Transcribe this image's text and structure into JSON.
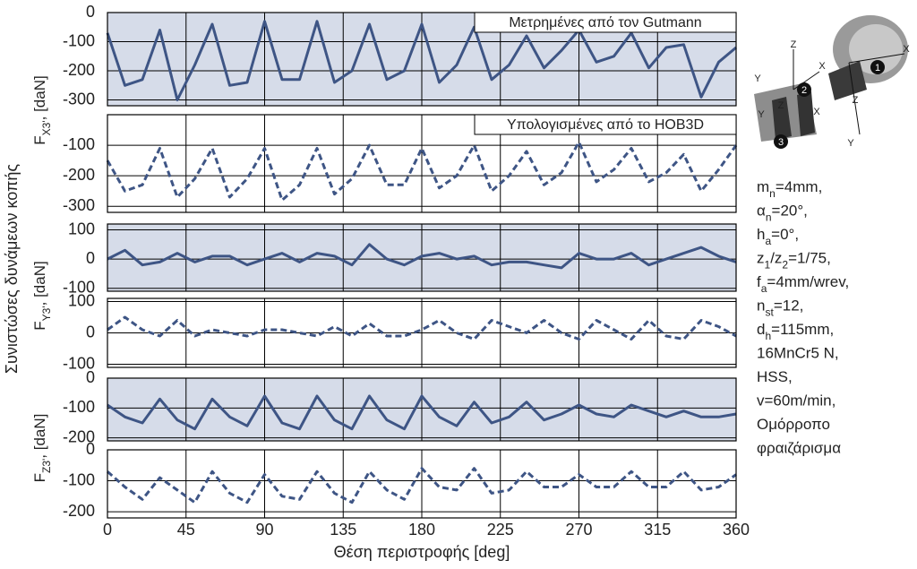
{
  "chart_data": [
    {
      "type": "line",
      "annotation": "Μετρημένες από τον Gutmann",
      "ylabel": {
        "main": "F",
        "sub": "X3'",
        "unit": ", [daN]"
      },
      "color": "#3e5585",
      "dashed": false,
      "background": "#d6dce9",
      "x": [
        0,
        10,
        20,
        30,
        40,
        50,
        60,
        70,
        80,
        90,
        100,
        110,
        120,
        130,
        140,
        150,
        160,
        170,
        180,
        190,
        200,
        210,
        220,
        230,
        240,
        250,
        260,
        270,
        280,
        290,
        300,
        310,
        320,
        330,
        340,
        350,
        360
      ],
      "values": [
        -70,
        -250,
        -230,
        -60,
        -300,
        -180,
        -40,
        -250,
        -240,
        -30,
        -230,
        -230,
        -30,
        -240,
        -200,
        -40,
        -230,
        -200,
        -40,
        -240,
        -180,
        -50,
        -230,
        -180,
        -80,
        -190,
        -130,
        -60,
        -170,
        -150,
        -70,
        -190,
        -120,
        -110,
        -290,
        -170,
        -120
      ],
      "xlim": [
        0,
        360
      ],
      "xticks": [
        0,
        45,
        90,
        135,
        180,
        225,
        270,
        315,
        360
      ],
      "ylim": [
        -320,
        0
      ],
      "yticks": [
        0,
        -100,
        -200,
        -300
      ]
    },
    {
      "type": "line",
      "annotation": "Υπολογισμένες από το HOB3D",
      "color": "#3e5585",
      "dashed": true,
      "x": [
        0,
        10,
        20,
        30,
        40,
        50,
        60,
        70,
        80,
        90,
        100,
        110,
        120,
        130,
        140,
        150,
        160,
        170,
        180,
        190,
        200,
        210,
        220,
        230,
        240,
        250,
        260,
        270,
        280,
        290,
        300,
        310,
        320,
        330,
        340,
        350,
        360
      ],
      "values": [
        -150,
        -250,
        -230,
        -110,
        -270,
        -210,
        -110,
        -270,
        -210,
        -110,
        -280,
        -230,
        -110,
        -260,
        -210,
        -100,
        -230,
        -230,
        -110,
        -240,
        -200,
        -100,
        -250,
        -200,
        -120,
        -230,
        -190,
        -90,
        -220,
        -180,
        -110,
        -220,
        -190,
        -130,
        -250,
        -180,
        -100
      ],
      "xlim": [
        0,
        360
      ],
      "xticks": [
        0,
        45,
        90,
        135,
        180,
        225,
        270,
        315,
        360
      ],
      "ylim": [
        -320,
        0
      ],
      "yticks": [
        -100,
        -200,
        -300
      ]
    },
    {
      "type": "line",
      "ylabel": {
        "main": "F",
        "sub": "Y3'",
        "unit": ", [daN]"
      },
      "color": "#3e5585",
      "dashed": false,
      "background": "#d6dce9",
      "x": [
        0,
        10,
        20,
        30,
        40,
        50,
        60,
        70,
        80,
        90,
        100,
        110,
        120,
        130,
        140,
        150,
        160,
        170,
        180,
        190,
        200,
        210,
        220,
        230,
        240,
        250,
        260,
        270,
        280,
        290,
        300,
        310,
        320,
        330,
        340,
        350,
        360
      ],
      "values": [
        0,
        30,
        -20,
        -10,
        20,
        -10,
        10,
        10,
        -20,
        0,
        20,
        -10,
        20,
        10,
        -20,
        50,
        0,
        -20,
        10,
        20,
        0,
        10,
        -20,
        -10,
        -10,
        -20,
        -30,
        20,
        0,
        0,
        20,
        -20,
        0,
        20,
        40,
        10,
        -10
      ],
      "xlim": [
        0,
        360
      ],
      "xticks": [
        0,
        45,
        90,
        135,
        180,
        225,
        270,
        315,
        360
      ],
      "ylim": [
        -110,
        120
      ],
      "yticks": [
        100,
        0,
        -100
      ]
    },
    {
      "type": "line",
      "color": "#3e5585",
      "dashed": true,
      "x": [
        0,
        10,
        20,
        30,
        40,
        50,
        60,
        70,
        80,
        90,
        100,
        110,
        120,
        130,
        140,
        150,
        160,
        170,
        180,
        190,
        200,
        210,
        220,
        230,
        240,
        250,
        260,
        270,
        280,
        290,
        300,
        310,
        320,
        330,
        340,
        350,
        360
      ],
      "values": [
        10,
        50,
        10,
        -10,
        40,
        -10,
        10,
        0,
        -10,
        10,
        10,
        0,
        -10,
        20,
        -10,
        30,
        -10,
        -10,
        10,
        40,
        0,
        -20,
        40,
        20,
        0,
        40,
        0,
        -20,
        40,
        10,
        -20,
        40,
        -10,
        -20,
        40,
        20,
        -10
      ],
      "xlim": [
        0,
        360
      ],
      "xticks": [
        0,
        45,
        90,
        135,
        180,
        225,
        270,
        315,
        360
      ],
      "ylim": [
        -110,
        110
      ],
      "yticks": [
        100,
        0,
        -100
      ]
    },
    {
      "type": "line",
      "ylabel": {
        "main": "F",
        "sub": "Z3'",
        "unit": ", [daN]"
      },
      "color": "#3e5585",
      "dashed": false,
      "background": "#d6dce9",
      "x": [
        0,
        10,
        20,
        30,
        40,
        50,
        60,
        70,
        80,
        90,
        100,
        110,
        120,
        130,
        140,
        150,
        160,
        170,
        180,
        190,
        200,
        210,
        220,
        230,
        240,
        250,
        260,
        270,
        280,
        290,
        300,
        310,
        320,
        330,
        340,
        350,
        360
      ],
      "values": [
        -90,
        -130,
        -150,
        -70,
        -140,
        -170,
        -70,
        -130,
        -160,
        -60,
        -150,
        -170,
        -60,
        -140,
        -170,
        -60,
        -140,
        -170,
        -60,
        -130,
        -160,
        -80,
        -150,
        -130,
        -80,
        -140,
        -120,
        -90,
        -120,
        -130,
        -90,
        -110,
        -130,
        -110,
        -130,
        -130,
        -120
      ],
      "xlim": [
        0,
        360
      ],
      "xticks": [
        0,
        45,
        90,
        135,
        180,
        225,
        270,
        315,
        360
      ],
      "ylim": [
        -210,
        0
      ],
      "yticks": [
        0,
        -100,
        -200
      ]
    },
    {
      "type": "line",
      "color": "#3e5585",
      "dashed": true,
      "xlabel": "Θέση περιστροφής [deg]",
      "x": [
        0,
        10,
        20,
        30,
        40,
        50,
        60,
        70,
        80,
        90,
        100,
        110,
        120,
        130,
        140,
        150,
        160,
        170,
        180,
        190,
        200,
        210,
        220,
        230,
        240,
        250,
        260,
        270,
        280,
        290,
        300,
        310,
        320,
        330,
        340,
        350,
        360
      ],
      "values": [
        -70,
        -120,
        -160,
        -90,
        -130,
        -170,
        -70,
        -140,
        -170,
        -80,
        -150,
        -160,
        -70,
        -140,
        -170,
        -70,
        -130,
        -160,
        -60,
        -120,
        -130,
        -60,
        -140,
        -130,
        -70,
        -120,
        -120,
        -80,
        -120,
        -120,
        -70,
        -120,
        -120,
        -70,
        -130,
        -120,
        -80
      ],
      "xlim": [
        0,
        360
      ],
      "xticks": [
        0,
        45,
        90,
        135,
        180,
        225,
        270,
        315,
        360
      ],
      "ylim": [
        -220,
        0
      ],
      "yticks": [
        0,
        -100,
        -200
      ]
    }
  ],
  "common_ylabel": "Συνιστώσες δυνάμεων κοπής",
  "parameters": [
    [
      {
        "text": "m"
      },
      {
        "sub": "n"
      },
      {
        "text": "=4mm,"
      }
    ],
    [
      {
        "text": "α"
      },
      {
        "sub": "n"
      },
      {
        "text": "=20°,"
      }
    ],
    [
      {
        "text": "h"
      },
      {
        "sub": "a"
      },
      {
        "text": "=0°,"
      }
    ],
    [
      {
        "text": "z"
      },
      {
        "sub": "1"
      },
      {
        "text": "/z"
      },
      {
        "sub": "2"
      },
      {
        "text": "=1/75,"
      }
    ],
    [
      {
        "text": "f"
      },
      {
        "sub": "a"
      },
      {
        "text": "=4mm/wrev,"
      }
    ],
    [
      {
        "text": "n"
      },
      {
        "sub": "st"
      },
      {
        "text": "=12,"
      }
    ],
    [
      {
        "text": "d"
      },
      {
        "sub": "h"
      },
      {
        "text": "=115mm,"
      }
    ],
    [
      {
        "text": "16MnCr5 N,"
      }
    ],
    [
      {
        "text": "HSS,"
      }
    ],
    [
      {
        "text": "v=60m/min,"
      }
    ],
    [
      {
        "text": "Ομόρροπο"
      }
    ],
    [
      {
        "text": "φραιζάρισμα"
      }
    ]
  ],
  "illustration": {
    "markers": [
      "1",
      "2",
      "3"
    ],
    "axes": [
      "Z",
      "X",
      "Y",
      "Z",
      "X",
      "Y",
      "Z",
      "X",
      "Y"
    ]
  }
}
